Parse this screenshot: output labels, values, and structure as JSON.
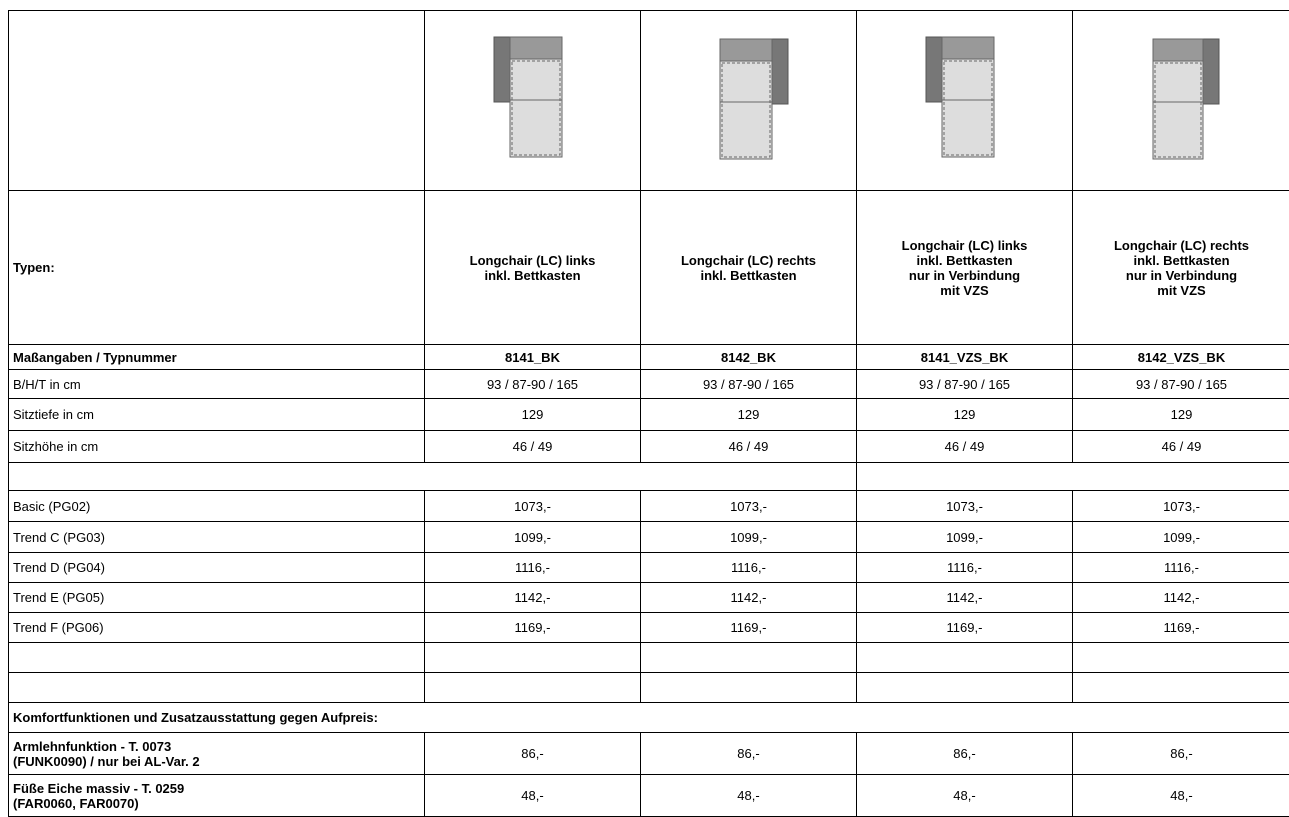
{
  "table": {
    "type_label": "Typen:",
    "types": [
      "Longchair (LC) links\ninkl. Bettkasten",
      "Longchair (LC) rechts\ninkl. Bettkasten",
      "Longchair (LC) links\ninkl. Bettkasten\nnur in Verbindung\nmit VZS",
      "Longchair (LC) rechts\ninkl. Bettkasten\nnur in Verbindung\nmit VZS"
    ],
    "spec_header": [
      "Maßangaben / Typnummer",
      "8141_BK",
      "8142_BK",
      "8141_VZS_BK",
      "8142_VZS_BK"
    ],
    "specs": [
      [
        "B/H/T in cm",
        "93 / 87-90 / 165",
        "93 / 87-90 / 165",
        "93 / 87-90 / 165",
        "93 / 87-90 / 165"
      ],
      [
        "Sitztiefe in cm",
        "129",
        "129",
        "129",
        "129"
      ],
      [
        "Sitzhöhe in cm",
        "46 / 49",
        "46 / 49",
        "46 / 49",
        "46 / 49"
      ]
    ],
    "prices": [
      [
        "Basic (PG02)",
        "1073,-",
        "1073,-",
        "1073,-",
        "1073,-"
      ],
      [
        "Trend C (PG03)",
        "1099,-",
        "1099,-",
        "1099,-",
        "1099,-"
      ],
      [
        "Trend D (PG04)",
        "1116,-",
        "1116,-",
        "1116,-",
        "1116,-"
      ],
      [
        "Trend E (PG05)",
        "1142,-",
        "1142,-",
        "1142,-",
        "1142,-"
      ],
      [
        "Trend F (PG06)",
        "1169,-",
        "1169,-",
        "1169,-",
        "1169,-"
      ]
    ],
    "section_heading": "Komfortfunktionen und Zusatzausstattung gegen Aufpreis:",
    "extras": [
      [
        "Armlehnfunktion - T. 0073\n(FUNK0090) / nur bei AL-Var. 2",
        "86,-",
        "86,-",
        "86,-",
        "86,-"
      ],
      [
        "Füße Eiche massiv - T. 0259\n(FAR0060, FAR0070)",
        "48,-",
        "48,-",
        "48,-",
        "48,-"
      ]
    ]
  }
}
